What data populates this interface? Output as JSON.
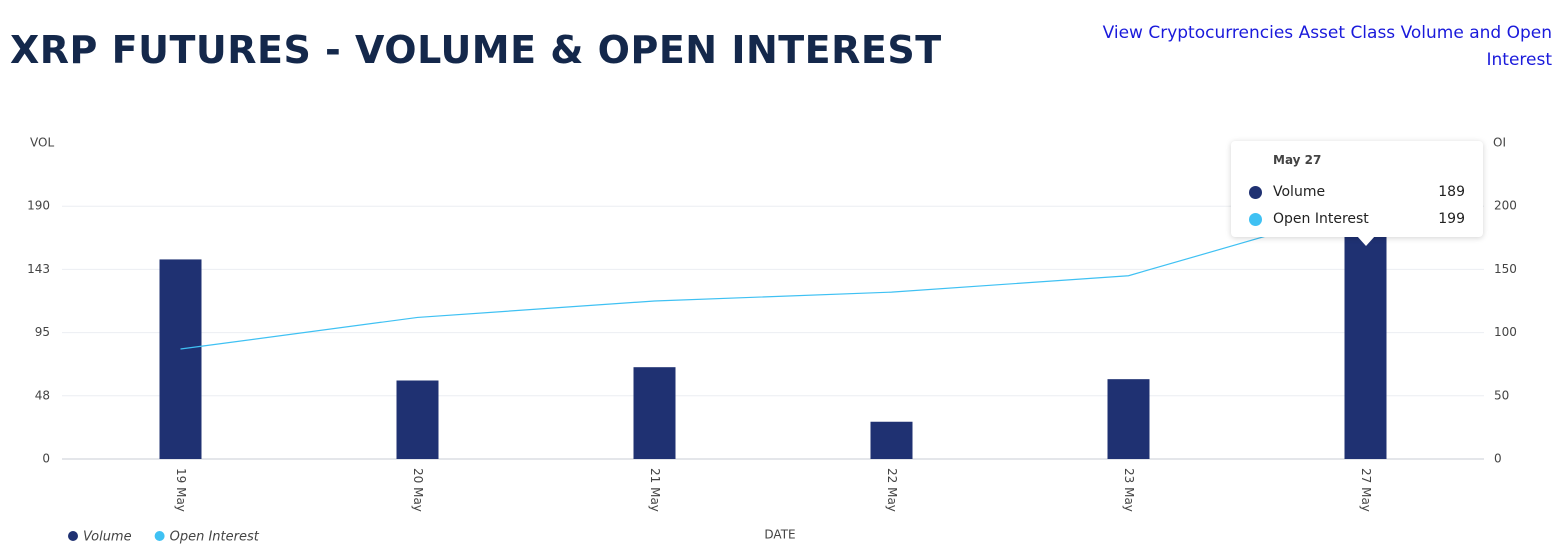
{
  "chart_data": {
    "type": "bar-line",
    "title": "XRP FUTURES - VOLUME & OPEN INTEREST",
    "header_link": "View Cryptocurrencies Asset Class Volume and Open Interest",
    "y_label": "VOL",
    "y2_label": "OI",
    "x_label": "DATE",
    "categories": [
      "19 May",
      "20 May",
      "21 May",
      "22 May",
      "23 May",
      "27 May"
    ],
    "series": [
      {
        "name": "Volume",
        "type": "bar",
        "color": "#1f3172",
        "values": [
          150,
          59,
          69,
          28,
          60,
          189
        ]
      },
      {
        "name": "Open Interest",
        "type": "line",
        "color": "#3fc1f3",
        "axis": "y2",
        "values": [
          87,
          112,
          125,
          132,
          145,
          199
        ]
      }
    ],
    "ylim": [
      0,
      237.5
    ],
    "yticks": [
      0,
      {
        "value": 47.5,
        "label": "48"
      },
      95,
      {
        "value": 142.5,
        "label": "143"
      },
      190
    ],
    "y2lim": [
      0,
      250
    ],
    "y2ticks": [
      0,
      50,
      100,
      150,
      200
    ],
    "grid": true,
    "tooltip": {
      "title": "May 27",
      "index": 5
    }
  }
}
